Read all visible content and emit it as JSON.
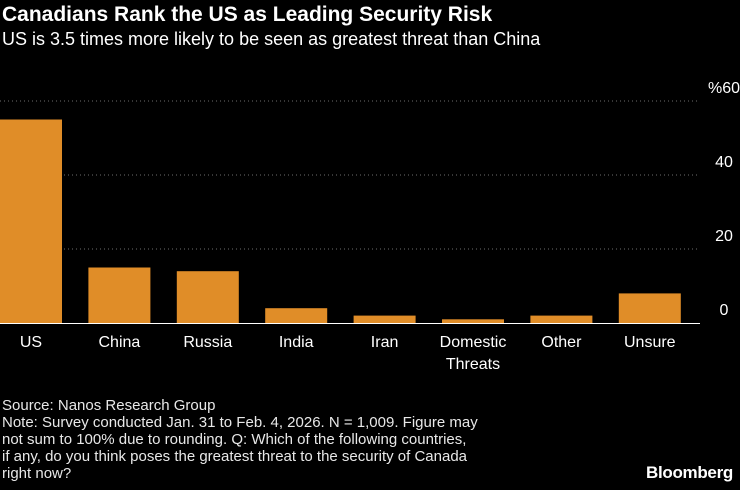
{
  "title": "Canadians Rank the US as Leading Security Risk",
  "subtitle": "US is 3.5 times more likely to be seen as greatest threat than China",
  "chart_data": {
    "type": "bar",
    "title": "Canadians Rank the US as Leading Security Risk",
    "subtitle": "US is 3.5 times more likely to be seen as greatest threat than China",
    "categories": [
      "US",
      "China",
      "Russia",
      "India",
      "Iran",
      "Domestic Threats",
      "Other",
      "Unsure"
    ],
    "category_lines": [
      [
        "US"
      ],
      [
        "China"
      ],
      [
        "Russia"
      ],
      [
        "India"
      ],
      [
        "Iran"
      ],
      [
        "Domestic",
        "Threats"
      ],
      [
        "Other"
      ],
      [
        "Unsure"
      ]
    ],
    "values": [
      55,
      15,
      14,
      4,
      2,
      1,
      2,
      8
    ],
    "unit": "%",
    "ylim": [
      0,
      60
    ],
    "yticks": [
      0,
      20,
      40,
      60
    ],
    "ytick_labels": [
      "0",
      "20",
      "40",
      "%60"
    ],
    "axis_side": "right",
    "grid": true,
    "bar_color": "#e08d28"
  },
  "footer": {
    "source": "Source: Nanos Research Group",
    "note": [
      "Note: Survey conducted Jan. 31 to Feb. 4, 2026. N = 1,009. Figure may",
      "not sum to 100% due to rounding. Q: Which of the following countries,",
      "if any, do you think poses the greatest threat to the security of Canada",
      "right now?"
    ]
  },
  "brand": "Bloomberg"
}
